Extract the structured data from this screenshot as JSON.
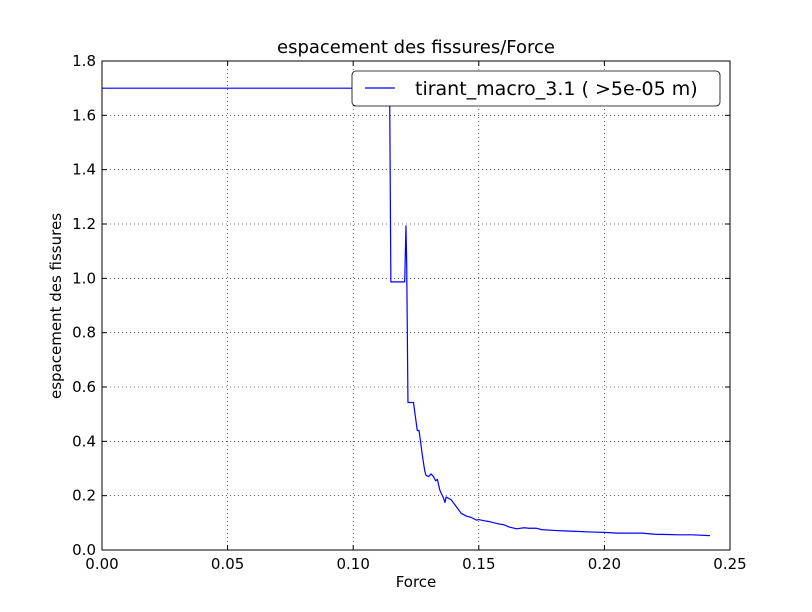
{
  "chart_data": {
    "type": "line",
    "title": "espacement des fissures/Force",
    "xlabel": "Force",
    "ylabel": "espacement des fissures",
    "xlim": [
      0.0,
      0.25
    ],
    "ylim": [
      0.0,
      1.8
    ],
    "xticks": [
      "0.00",
      "0.05",
      "0.10",
      "0.15",
      "0.20",
      "0.25"
    ],
    "yticks": [
      "0.0",
      "0.2",
      "0.4",
      "0.6",
      "0.8",
      "1.0",
      "1.2",
      "1.4",
      "1.6",
      "1.8"
    ],
    "grid": true,
    "legend_position": "top-right",
    "series": [
      {
        "name": "tirant_macro_3.1 ( >5e-05 m)",
        "color": "#0000ff",
        "x": [
          0.0,
          0.114,
          0.1145,
          0.115,
          0.1205,
          0.121,
          0.1213,
          0.1218,
          0.1222,
          0.1228,
          0.124,
          0.1255,
          0.1262,
          0.1268,
          0.1275,
          0.1285,
          0.129,
          0.13,
          0.131,
          0.132,
          0.1328,
          0.1335,
          0.1345,
          0.135,
          0.1355,
          0.136,
          0.1365,
          0.137,
          0.139,
          0.141,
          0.143,
          0.145,
          0.147,
          0.149,
          0.15,
          0.152,
          0.154,
          0.156,
          0.158,
          0.16,
          0.162,
          0.165,
          0.168,
          0.17,
          0.173,
          0.175,
          0.18,
          0.185,
          0.19,
          0.195,
          0.2,
          0.205,
          0.21,
          0.215,
          0.22,
          0.225,
          0.23,
          0.235,
          0.242
        ],
        "y": [
          1.7,
          1.7,
          1.7,
          0.987,
          0.987,
          1.193,
          1.05,
          0.543,
          0.543,
          0.543,
          0.543,
          0.44,
          0.44,
          0.4,
          0.35,
          0.29,
          0.275,
          0.27,
          0.28,
          0.27,
          0.255,
          0.26,
          0.22,
          0.21,
          0.2,
          0.19,
          0.175,
          0.195,
          0.185,
          0.16,
          0.135,
          0.125,
          0.12,
          0.11,
          0.112,
          0.108,
          0.105,
          0.1,
          0.096,
          0.093,
          0.085,
          0.078,
          0.082,
          0.08,
          0.08,
          0.075,
          0.072,
          0.07,
          0.068,
          0.066,
          0.065,
          0.062,
          0.062,
          0.062,
          0.058,
          0.057,
          0.056,
          0.056,
          0.053
        ]
      }
    ]
  }
}
